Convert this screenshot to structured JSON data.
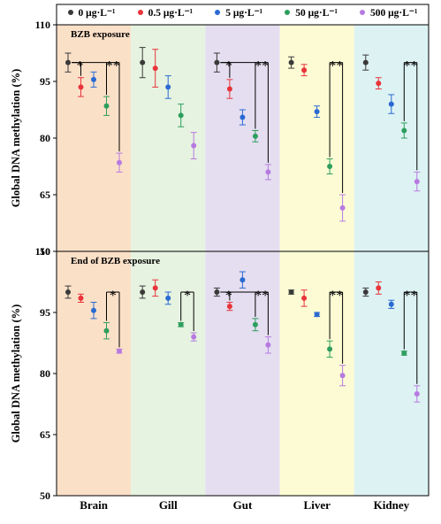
{
  "chart_data": [
    {
      "type": "scatter",
      "panel_title": "BZB exposure",
      "ylabel": "Global DNA methylation (%)",
      "ylim": [
        50,
        110
      ],
      "yticks": [
        "50",
        "65",
        "80",
        "95",
        "110"
      ],
      "categories": [
        "Brain",
        "Gill",
        "Gut",
        "Liver",
        "Kidney"
      ],
      "series": [
        {
          "name": "0 μg·L⁻¹",
          "values": [
            100,
            100,
            100,
            100,
            100
          ],
          "errors": [
            2.5,
            4,
            2.5,
            1.5,
            2
          ]
        },
        {
          "name": "0.5 μg·L⁻¹",
          "values": [
            93.5,
            98.5,
            93,
            98,
            94.5
          ],
          "errors": [
            2.5,
            5,
            2.5,
            1.5,
            1.5
          ]
        },
        {
          "name": "5 μg·L⁻¹",
          "values": [
            95.5,
            93.5,
            85.5,
            87,
            89
          ],
          "errors": [
            2,
            3,
            2,
            1.5,
            2.5
          ]
        },
        {
          "name": "50 μg·L⁻¹",
          "values": [
            88.5,
            86,
            80.5,
            72.5,
            82
          ],
          "errors": [
            2.5,
            3,
            1.5,
            2,
            2
          ]
        },
        {
          "name": "500 μg·L⁻¹",
          "values": [
            73.5,
            78,
            71,
            61.5,
            68.5
          ],
          "errors": [
            2.5,
            3.5,
            2,
            3.5,
            2.5
          ]
        }
      ],
      "significance": [
        {
          "category": "Brain",
          "marks": [
            "*",
            "**"
          ]
        },
        {
          "category": "Gut",
          "marks": [
            "*",
            "**"
          ]
        },
        {
          "category": "Liver",
          "marks": [
            "**"
          ]
        },
        {
          "category": "Kidney",
          "marks": [
            "**"
          ]
        }
      ]
    },
    {
      "type": "scatter",
      "panel_title": "End of BZB exposure",
      "ylabel": "Global DNA methylation (%)",
      "ylim": [
        50,
        110
      ],
      "yticks": [
        "50",
        "65",
        "80",
        "95",
        "110"
      ],
      "categories": [
        "Brain",
        "Gill",
        "Gut",
        "Liver",
        "Kidney"
      ],
      "series": [
        {
          "name": "0 μg·L⁻¹",
          "values": [
            100,
            100,
            100,
            100,
            100
          ],
          "errors": [
            1.5,
            1.5,
            1,
            0.5,
            1
          ]
        },
        {
          "name": "0.5 μg·L⁻¹",
          "values": [
            98.5,
            101,
            96.5,
            98.5,
            101
          ],
          "errors": [
            1,
            2,
            1,
            2,
            1.5
          ]
        },
        {
          "name": "5 μg·L⁻¹",
          "values": [
            95.5,
            98.5,
            103,
            94.5,
            97
          ],
          "errors": [
            2,
            1.5,
            2,
            0.5,
            1
          ]
        },
        {
          "name": "50 μg·L⁻¹",
          "values": [
            90.5,
            92,
            92,
            86,
            85
          ],
          "errors": [
            2,
            0.5,
            1.5,
            2,
            0.5
          ]
        },
        {
          "name": "500 μg·L⁻¹",
          "values": [
            85.5,
            89,
            87,
            79.5,
            75
          ],
          "errors": [
            0.5,
            1,
            2,
            2.5,
            2
          ]
        }
      ],
      "significance": [
        {
          "category": "Brain",
          "marks": [
            "*"
          ]
        },
        {
          "category": "Gill",
          "marks": [
            "*"
          ]
        },
        {
          "category": "Gut",
          "marks": [
            "*",
            "**"
          ]
        },
        {
          "category": "Liver",
          "marks": [
            "**"
          ]
        },
        {
          "category": "Kidney",
          "marks": [
            "**"
          ]
        }
      ]
    }
  ],
  "colors": {
    "series": [
      "#3a3a3a",
      "#e8343a",
      "#2a6ad2",
      "#2e9e5e",
      "#b77ae0"
    ],
    "bands": [
      "#fbe0c8",
      "#e6f3e0",
      "#e4def0",
      "#fdfbd4",
      "#ddf2f3"
    ]
  }
}
